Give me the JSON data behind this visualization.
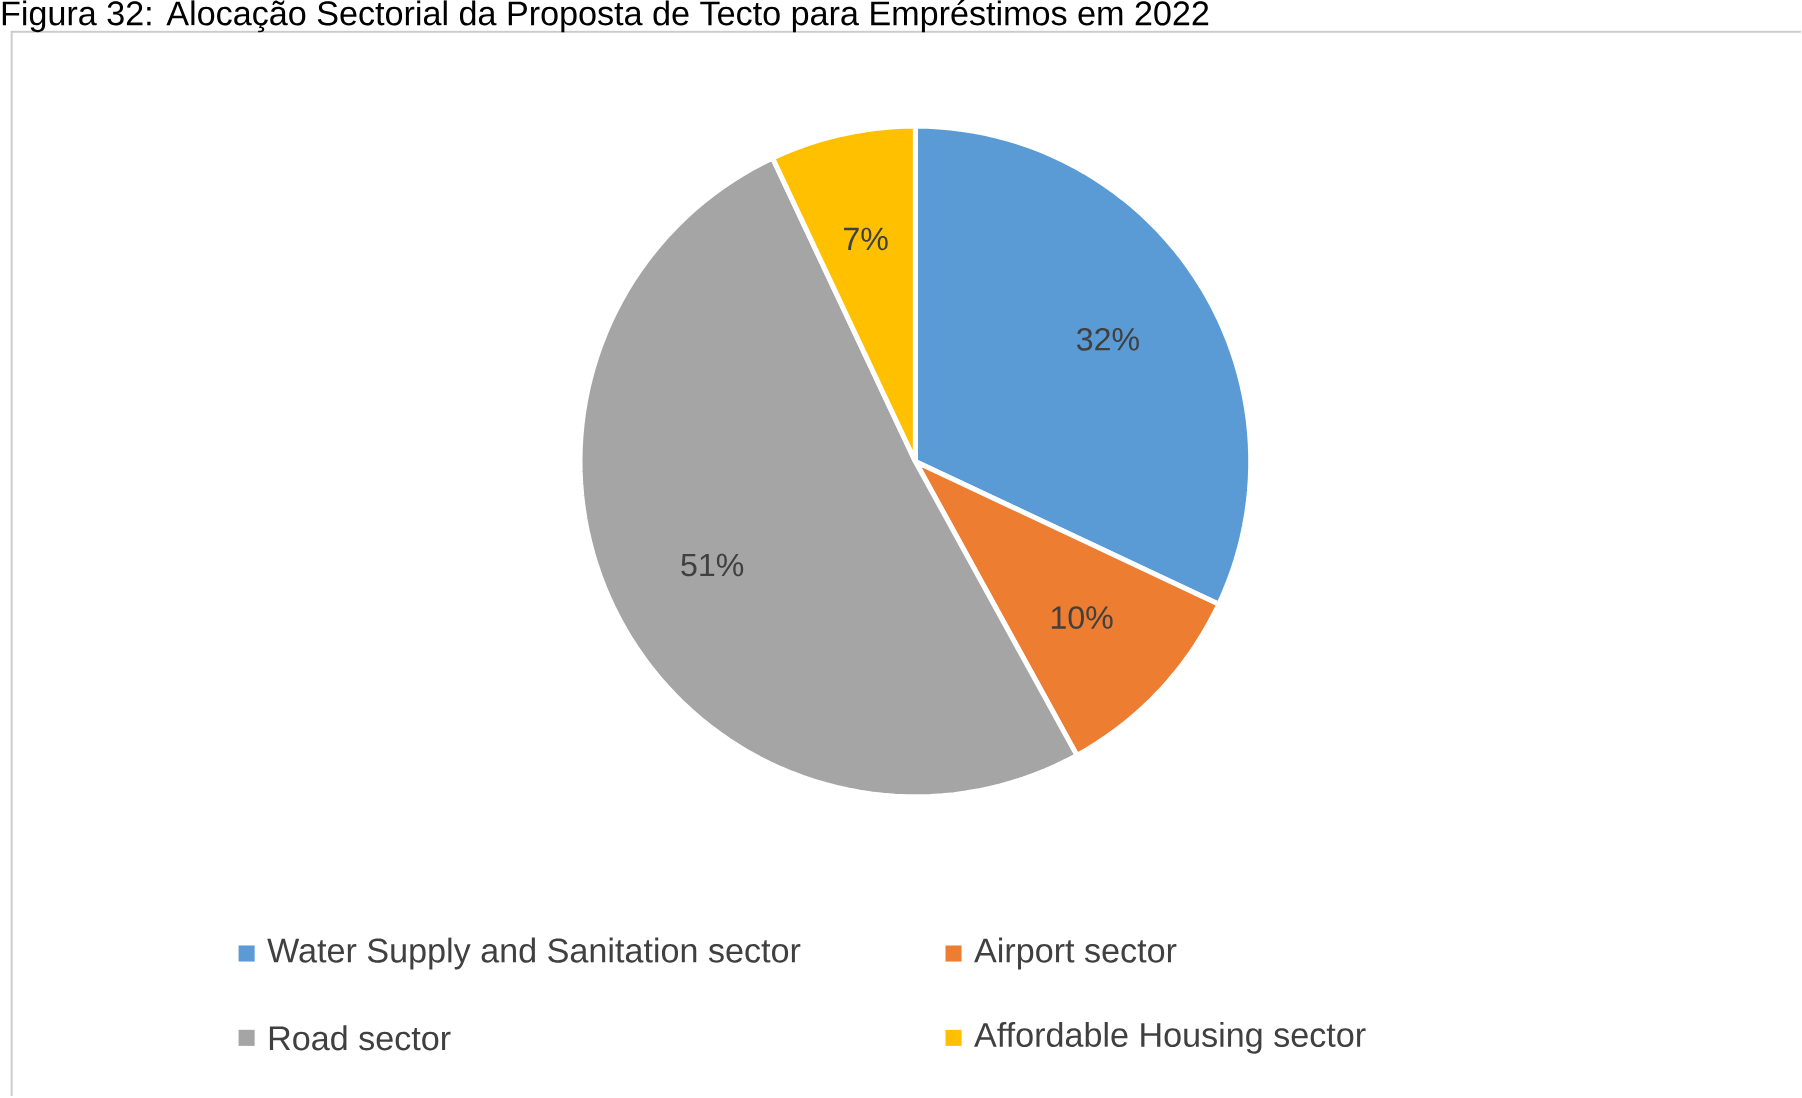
{
  "chart_data": {
    "type": "pie",
    "title": "Figura 32: Alocação Sectorial da Proposta de Tecto para Empréstimos em 2022",
    "categories": [
      "Water Supply and Sanitation sector",
      "Airport sector",
      "Road sector",
      "Affordable Housing sector"
    ],
    "values": [
      32,
      10,
      51,
      7
    ],
    "value_labels": [
      "32%",
      "10%",
      "51%",
      "7%"
    ],
    "colors": [
      "#5b9bd5",
      "#ed7d31",
      "#a5a5a5",
      "#ffc000"
    ],
    "legend": "bottom"
  }
}
